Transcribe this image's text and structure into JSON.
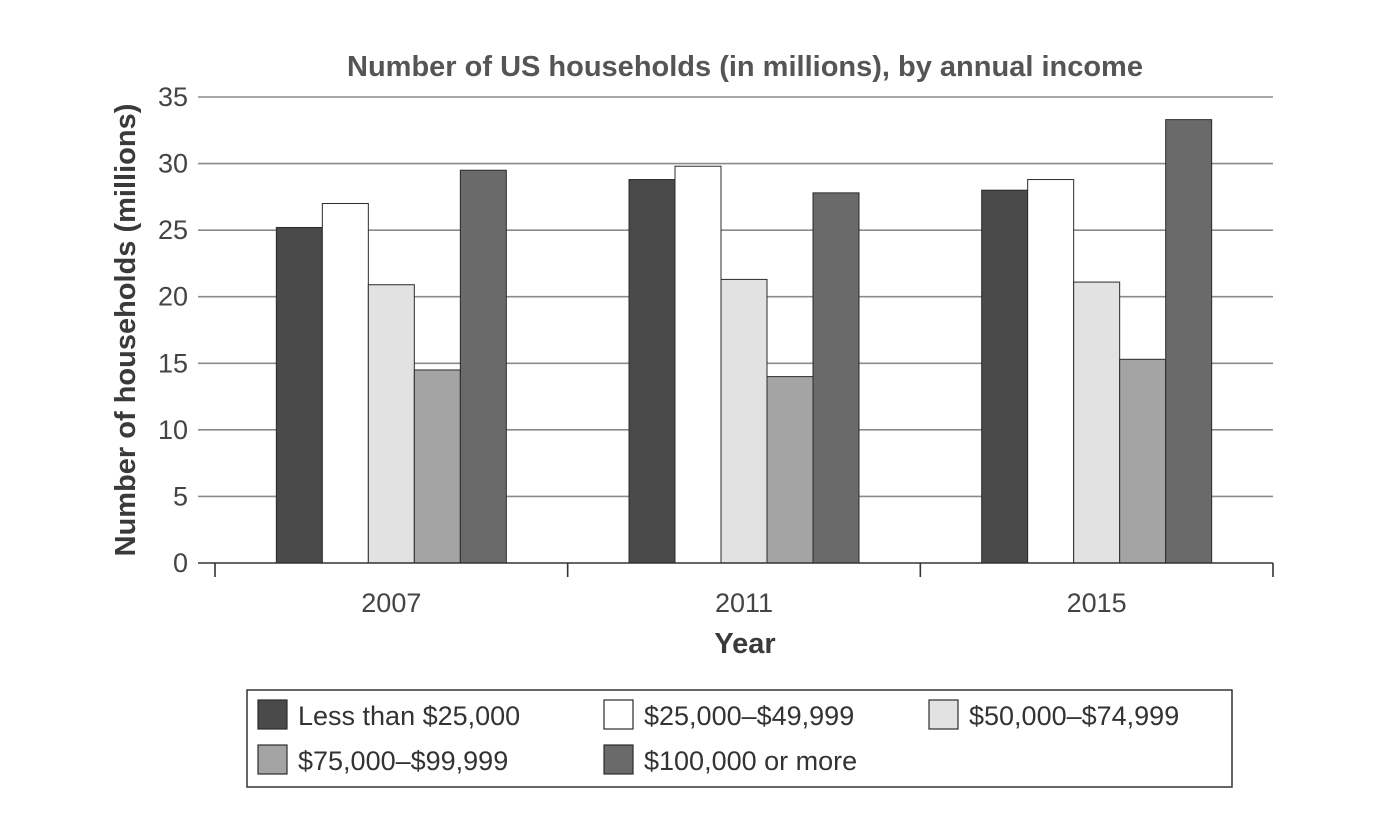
{
  "chart_data": {
    "type": "bar",
    "title": "Number of US households (in millions), by annual income",
    "xlabel": "Year",
    "ylabel": "Number of households (millions)",
    "categories": [
      "2007",
      "2011",
      "2015"
    ],
    "ylim": [
      0,
      35
    ],
    "yticks": [
      0,
      5,
      10,
      15,
      20,
      25,
      30,
      35
    ],
    "grid": true,
    "legend_position": "bottom",
    "series": [
      {
        "name": "Less than $25,000",
        "color": "#4a4a4a",
        "values": [
          25.2,
          28.8,
          28.0
        ]
      },
      {
        "name": "$25,000–$49,999",
        "color": "#ffffff",
        "values": [
          27.0,
          29.8,
          28.8
        ]
      },
      {
        "name": "$50,000–$74,999",
        "color": "#e2e2e2",
        "values": [
          20.9,
          21.3,
          21.1
        ]
      },
      {
        "name": "$75,000–$99,999",
        "color": "#a4a4a4",
        "values": [
          14.5,
          14.0,
          15.3
        ]
      },
      {
        "name": "$100,000 or more",
        "color": "#6a6a6a",
        "values": [
          29.5,
          27.8,
          33.3
        ]
      }
    ]
  }
}
